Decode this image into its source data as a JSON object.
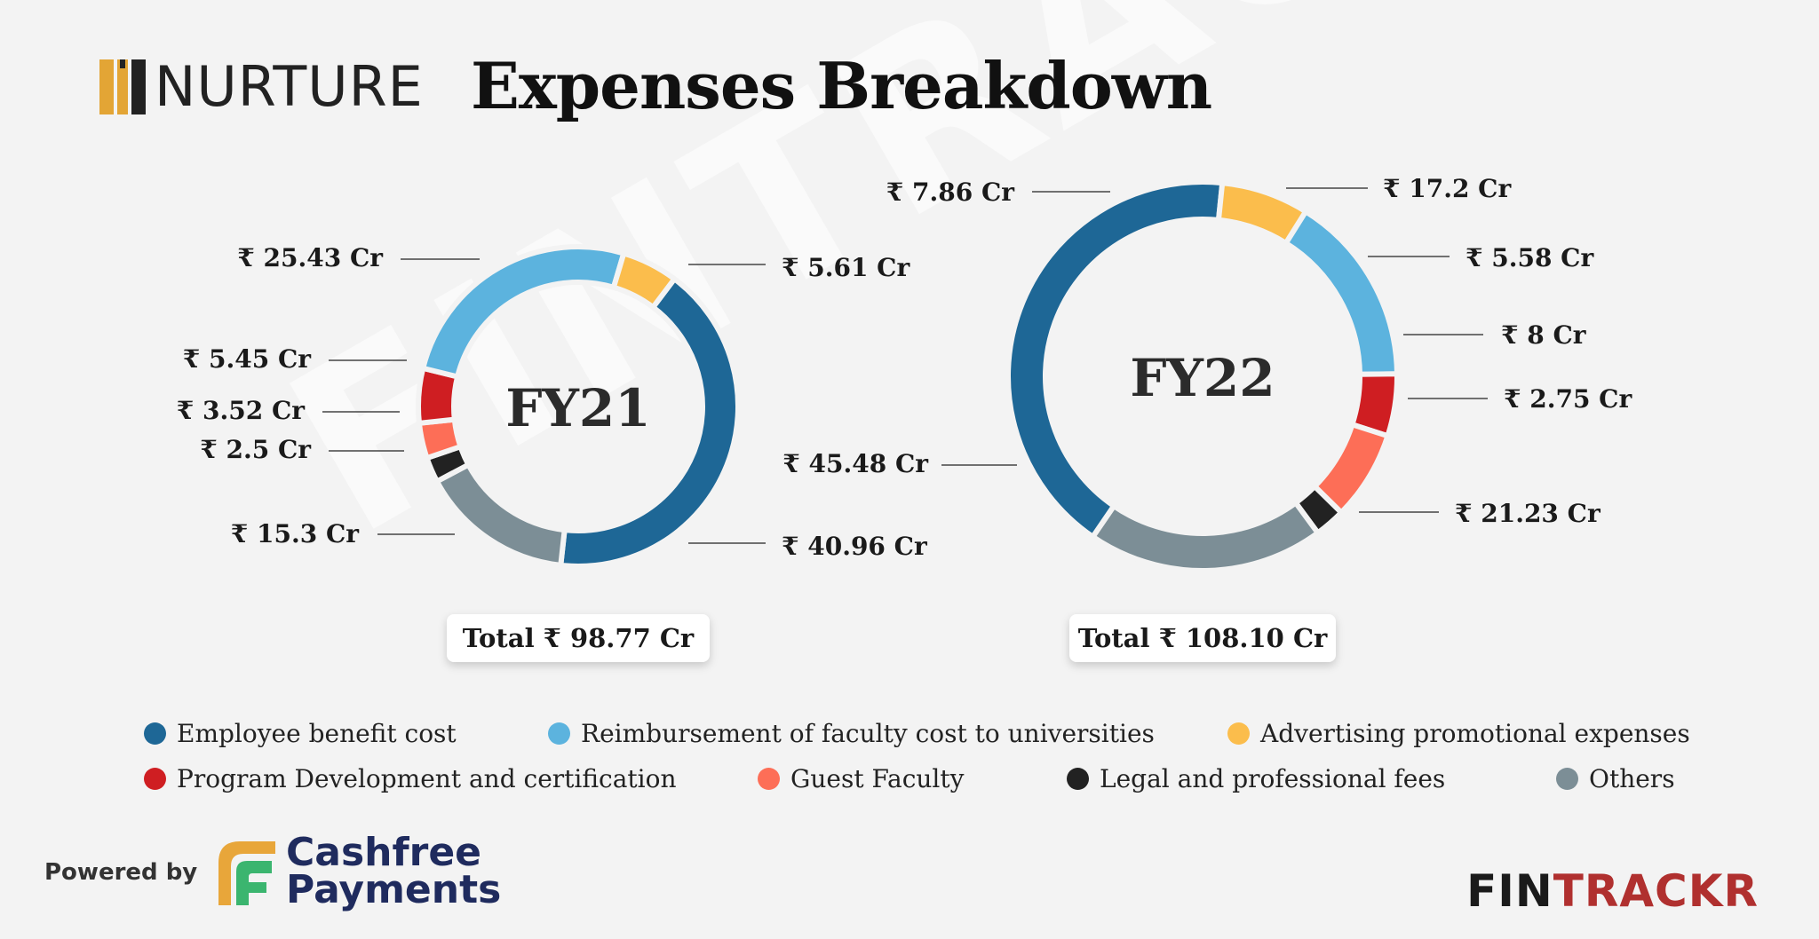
{
  "brand": {
    "name": "NURTURE",
    "logo_icon": "nurture-logo-icon"
  },
  "title": "Expenses Breakdown",
  "watermark": "FINTRACKR",
  "colors": {
    "employee": "#1e6796",
    "reimbursement": "#5cb3de",
    "advertising": "#fbbd4c",
    "program": "#cf1e22",
    "guest": "#fd6e57",
    "legal": "#222222",
    "others": "#7c8e96"
  },
  "chart_data": [
    {
      "type": "pie",
      "title": "FY21",
      "total_label": "Total ₹ 98.77 Cr",
      "total": 98.77,
      "unit": "₹ Cr",
      "slices": [
        {
          "name": "Employee benefit cost",
          "key": "employee",
          "value": 40.96,
          "label": "₹ 40.96 Cr"
        },
        {
          "name": "Others",
          "key": "others",
          "value": 15.3,
          "label": "₹ 15.3 Cr"
        },
        {
          "name": "Legal and professional fees",
          "key": "legal",
          "value": 2.5,
          "label": "₹ 2.5 Cr"
        },
        {
          "name": "Guest Faculty",
          "key": "guest",
          "value": 3.52,
          "label": "₹ 3.52 Cr"
        },
        {
          "name": "Program Development and certification",
          "key": "program",
          "value": 5.45,
          "label": "₹ 5.45 Cr"
        },
        {
          "name": "Reimbursement of faculty cost to universities",
          "key": "reimbursement",
          "value": 25.43,
          "label": "₹ 25.43 Cr"
        },
        {
          "name": "Advertising promotional expenses",
          "key": "advertising",
          "value": 5.61,
          "label": "₹ 5.61 Cr"
        }
      ]
    },
    {
      "type": "pie",
      "title": "FY22",
      "total_label": "Total ₹ 108.10 Cr",
      "total": 108.1,
      "unit": "₹ Cr",
      "slices": [
        {
          "name": "Reimbursement of faculty cost to universities",
          "key": "reimbursement",
          "value": 17.2,
          "label": "₹ 17.2 Cr"
        },
        {
          "name": "Program Development and certification",
          "key": "program",
          "value": 5.58,
          "label": "₹ 5.58 Cr"
        },
        {
          "name": "Guest Faculty",
          "key": "guest",
          "value": 8,
          "label": "₹ 8 Cr"
        },
        {
          "name": "Legal and professional fees",
          "key": "legal",
          "value": 2.75,
          "label": "₹ 2.75 Cr"
        },
        {
          "name": "Others",
          "key": "others",
          "value": 21.23,
          "label": "₹ 21.23 Cr"
        },
        {
          "name": "Employee benefit cost",
          "key": "employee",
          "value": 45.48,
          "label": "₹ 45.48 Cr"
        },
        {
          "name": "Advertising promotional expenses",
          "key": "advertising",
          "value": 7.86,
          "label": "₹ 7.86 Cr"
        }
      ]
    }
  ],
  "legend": [
    {
      "key": "employee",
      "label": "Employee benefit cost"
    },
    {
      "key": "reimbursement",
      "label": "Reimbursement of faculty cost to universities"
    },
    {
      "key": "advertising",
      "label": "Advertising promotional expenses"
    },
    {
      "key": "program",
      "label": "Program Development and certification"
    },
    {
      "key": "guest",
      "label": "Guest Faculty"
    },
    {
      "key": "legal",
      "label": "Legal and professional fees"
    },
    {
      "key": "others",
      "label": "Others"
    }
  ],
  "footer": {
    "powered_by": "Powered by",
    "sponsor_line1": "Cashfree",
    "sponsor_line2": "Payments",
    "sponsor_icon": "cashfree-logo-icon",
    "fintrackr_dark": "FIN",
    "fintrackr_red": "TRACKR"
  }
}
